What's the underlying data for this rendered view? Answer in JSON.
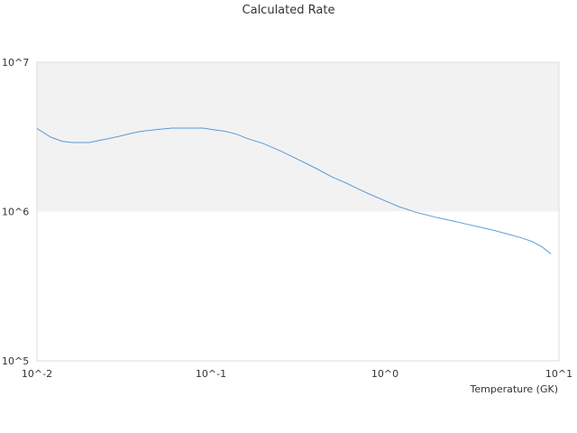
{
  "chart_data": {
    "type": "line",
    "title": "Calculated Rate",
    "xlabel": "Temperature (GK)",
    "ylabel": "",
    "x_scale": "log",
    "y_scale": "log",
    "xlim": [
      0.01,
      10
    ],
    "ylim": [
      100000,
      10000000
    ],
    "x_tick_labels": [
      "10^-2",
      "10^-1",
      "10^0",
      "10^1"
    ],
    "y_tick_labels": [
      "10^5",
      "10^6",
      "10^7"
    ],
    "shaded_band": {
      "from": 1000000,
      "to": 10000000,
      "color": "#f2f2f2"
    },
    "grid": false,
    "legend": "none",
    "series": [
      {
        "color": "#5b9bd5",
        "x": [
          0.01,
          0.012,
          0.014,
          0.016,
          0.018,
          0.02,
          0.023,
          0.025,
          0.03,
          0.035,
          0.04,
          0.05,
          0.06,
          0.07,
          0.08,
          0.09,
          0.1,
          0.12,
          0.14,
          0.16,
          0.2,
          0.25,
          0.3,
          0.4,
          0.5,
          0.6,
          0.7,
          0.8,
          1.0,
          1.2,
          1.5,
          2.0,
          2.5,
          3.0,
          4.0,
          5.0,
          6.0,
          7.0,
          8.0,
          9.0
        ],
        "y": [
          3600000,
          3150000,
          2950000,
          2900000,
          2900000,
          2900000,
          3000000,
          3050000,
          3200000,
          3350000,
          3450000,
          3550000,
          3620000,
          3620000,
          3620000,
          3620000,
          3550000,
          3450000,
          3300000,
          3100000,
          2850000,
          2550000,
          2300000,
          1950000,
          1700000,
          1550000,
          1420000,
          1320000,
          1180000,
          1080000,
          990000,
          910000,
          860000,
          820000,
          760000,
          710000,
          670000,
          630000,
          580000,
          520000
        ]
      }
    ]
  }
}
